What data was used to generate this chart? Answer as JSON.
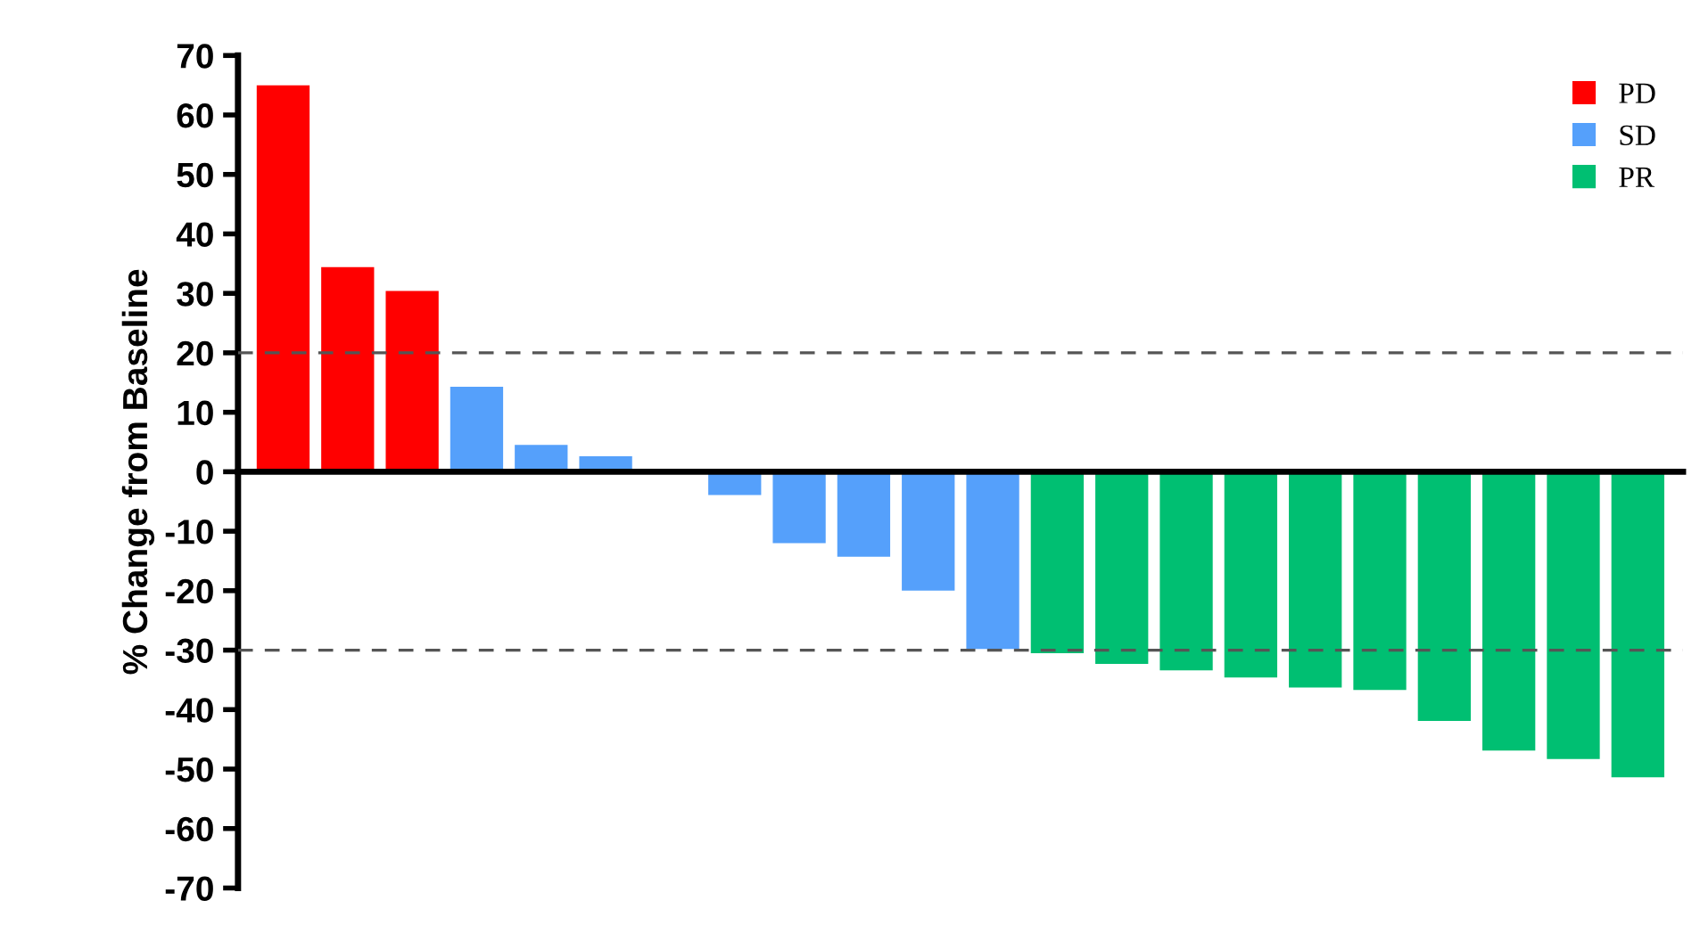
{
  "chart_data": {
    "type": "bar",
    "ylabel": "% Change from Baseline",
    "categories": [
      null,
      null,
      null,
      null,
      null,
      null,
      null,
      null,
      null,
      null,
      null,
      null,
      null,
      null,
      null,
      null,
      null,
      null,
      null,
      null,
      null,
      null
    ],
    "series": [
      {
        "name": "PD",
        "color": "#ff0000",
        "values": [
          65,
          34.4,
          30.4,
          null,
          null,
          null,
          null,
          null,
          null,
          null,
          null,
          null,
          null,
          null,
          null,
          null,
          null,
          null,
          null,
          null,
          null,
          null
        ]
      },
      {
        "name": "SD",
        "color": "#55a0fb",
        "values": [
          null,
          null,
          null,
          14.3,
          4.5,
          2.6,
          0,
          -3.9,
          -12,
          -14.3,
          -20,
          -29.8,
          null,
          null,
          null,
          null,
          null,
          null,
          null,
          null,
          null,
          null
        ]
      },
      {
        "name": "PR",
        "color": "#00bf72",
        "values": [
          null,
          null,
          null,
          null,
          null,
          null,
          null,
          null,
          null,
          null,
          null,
          null,
          -30.5,
          -32.3,
          -33.4,
          -34.6,
          -36.3,
          -36.7,
          -41.9,
          -46.9,
          -48.3,
          -51.4
        ]
      }
    ],
    "ylim": [
      -70,
      70
    ],
    "yticks": [
      -70,
      -60,
      -50,
      -40,
      -30,
      -20,
      -10,
      0,
      10,
      20,
      30,
      40,
      50,
      60,
      70
    ],
    "ref_lines": [
      {
        "axis": "y",
        "value": 20,
        "color": "#555555",
        "line_style": "dashed"
      },
      {
        "axis": "y",
        "value": -30,
        "color": "#555555",
        "line_style": "dashed"
      }
    ],
    "legend": "top right",
    "grid": false,
    "tick_labels": "y"
  }
}
